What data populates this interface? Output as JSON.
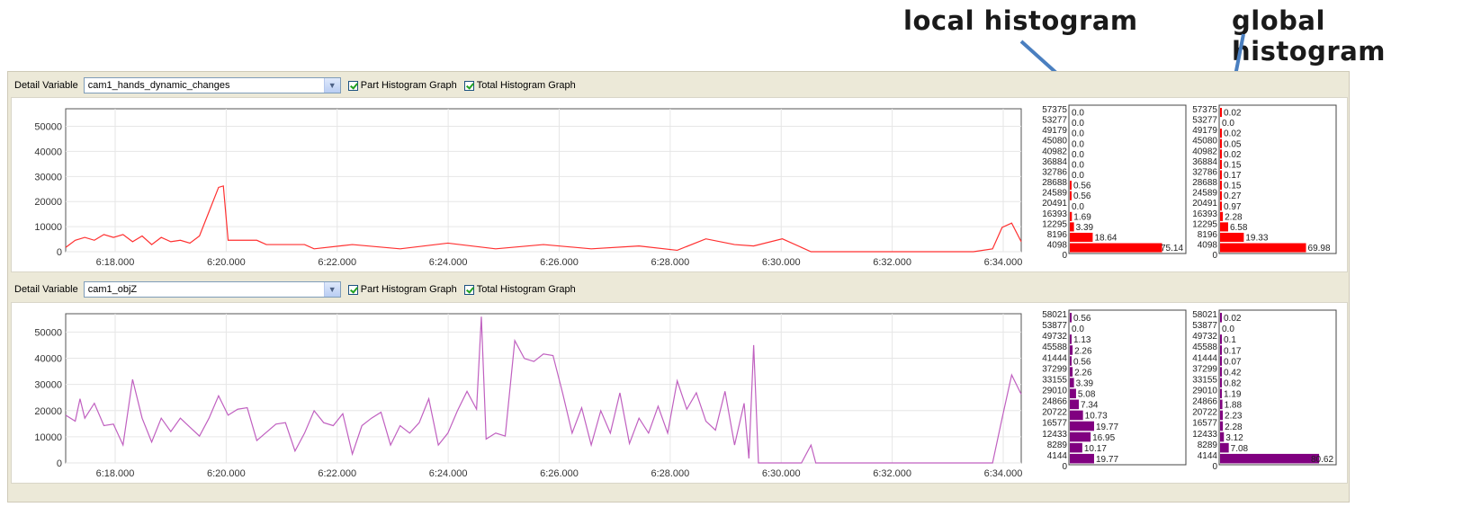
{
  "annotations": {
    "local_label": "local histogram",
    "global_label": "global histogram",
    "arrow_color": "#4a7fc0"
  },
  "charts": [
    {
      "detail_label": "Detail Variable",
      "variable": "cam1_hands_dynamic_changes",
      "part_label": "Part Histogram Graph",
      "total_label": "Total Histogram Graph",
      "color": "#ff3030",
      "bar_color": "#ff0000",
      "line_chart": {
        "yticks": [
          "0",
          "10000",
          "20000",
          "30000",
          "40000",
          "50000"
        ],
        "xticks": [
          "6:18.000",
          "6:20.000",
          "6:22.000",
          "6:24.000",
          "6:26.000",
          "6:28.000",
          "6:30.000",
          "6:32.000",
          "6:34.000"
        ]
      },
      "local_hist": {
        "bins": [
          "57375",
          "53277",
          "49179",
          "45080",
          "40982",
          "36884",
          "32786",
          "28688",
          "24589",
          "20491",
          "16393",
          "12295",
          "8196",
          "4098",
          "0"
        ],
        "values": [
          "0.0",
          "0.0",
          "0.0",
          "0.0",
          "0.0",
          "0.0",
          "0.0",
          "0.56",
          "0.56",
          "0.0",
          "1.69",
          "3.39",
          "18.64",
          "75.14"
        ]
      },
      "global_hist": {
        "bins": [
          "57375",
          "53277",
          "49179",
          "45080",
          "40982",
          "36884",
          "32786",
          "28688",
          "24589",
          "20491",
          "16393",
          "12295",
          "8196",
          "4098",
          "0"
        ],
        "values": [
          "0.02",
          "0.0",
          "0.02",
          "0.05",
          "0.02",
          "0.15",
          "0.17",
          "0.15",
          "0.27",
          "0.97",
          "2.28",
          "6.58",
          "19.33",
          "69.98"
        ]
      }
    },
    {
      "detail_label": "Detail Variable",
      "variable": "cam1_objZ",
      "part_label": "Part Histogram Graph",
      "total_label": "Total Histogram Graph",
      "color": "#c060c0",
      "bar_color": "#800080",
      "line_chart": {
        "yticks": [
          "0",
          "10000",
          "20000",
          "30000",
          "40000",
          "50000"
        ],
        "xticks": [
          "6:18.000",
          "6:20.000",
          "6:22.000",
          "6:24.000",
          "6:26.000",
          "6:28.000",
          "6:30.000",
          "6:32.000",
          "6:34.000"
        ]
      },
      "local_hist": {
        "bins": [
          "58021",
          "53877",
          "49732",
          "45588",
          "41444",
          "37299",
          "33155",
          "29010",
          "24866",
          "20722",
          "16577",
          "12433",
          "8289",
          "4144",
          "0"
        ],
        "values": [
          "0.56",
          "0.0",
          "1.13",
          "2.26",
          "0.56",
          "2.26",
          "3.39",
          "5.08",
          "7.34",
          "10.73",
          "19.77",
          "16.95",
          "10.17",
          "19.77"
        ]
      },
      "global_hist": {
        "bins": [
          "58021",
          "53877",
          "49732",
          "45588",
          "41444",
          "37299",
          "33155",
          "29010",
          "24866",
          "20722",
          "16577",
          "12433",
          "8289",
          "4144",
          "0"
        ],
        "values": [
          "0.02",
          "0.0",
          "0.1",
          "0.17",
          "0.07",
          "0.42",
          "0.82",
          "1.19",
          "1.88",
          "2.23",
          "2.28",
          "3.12",
          "7.08",
          "80.62"
        ]
      }
    }
  ]
}
